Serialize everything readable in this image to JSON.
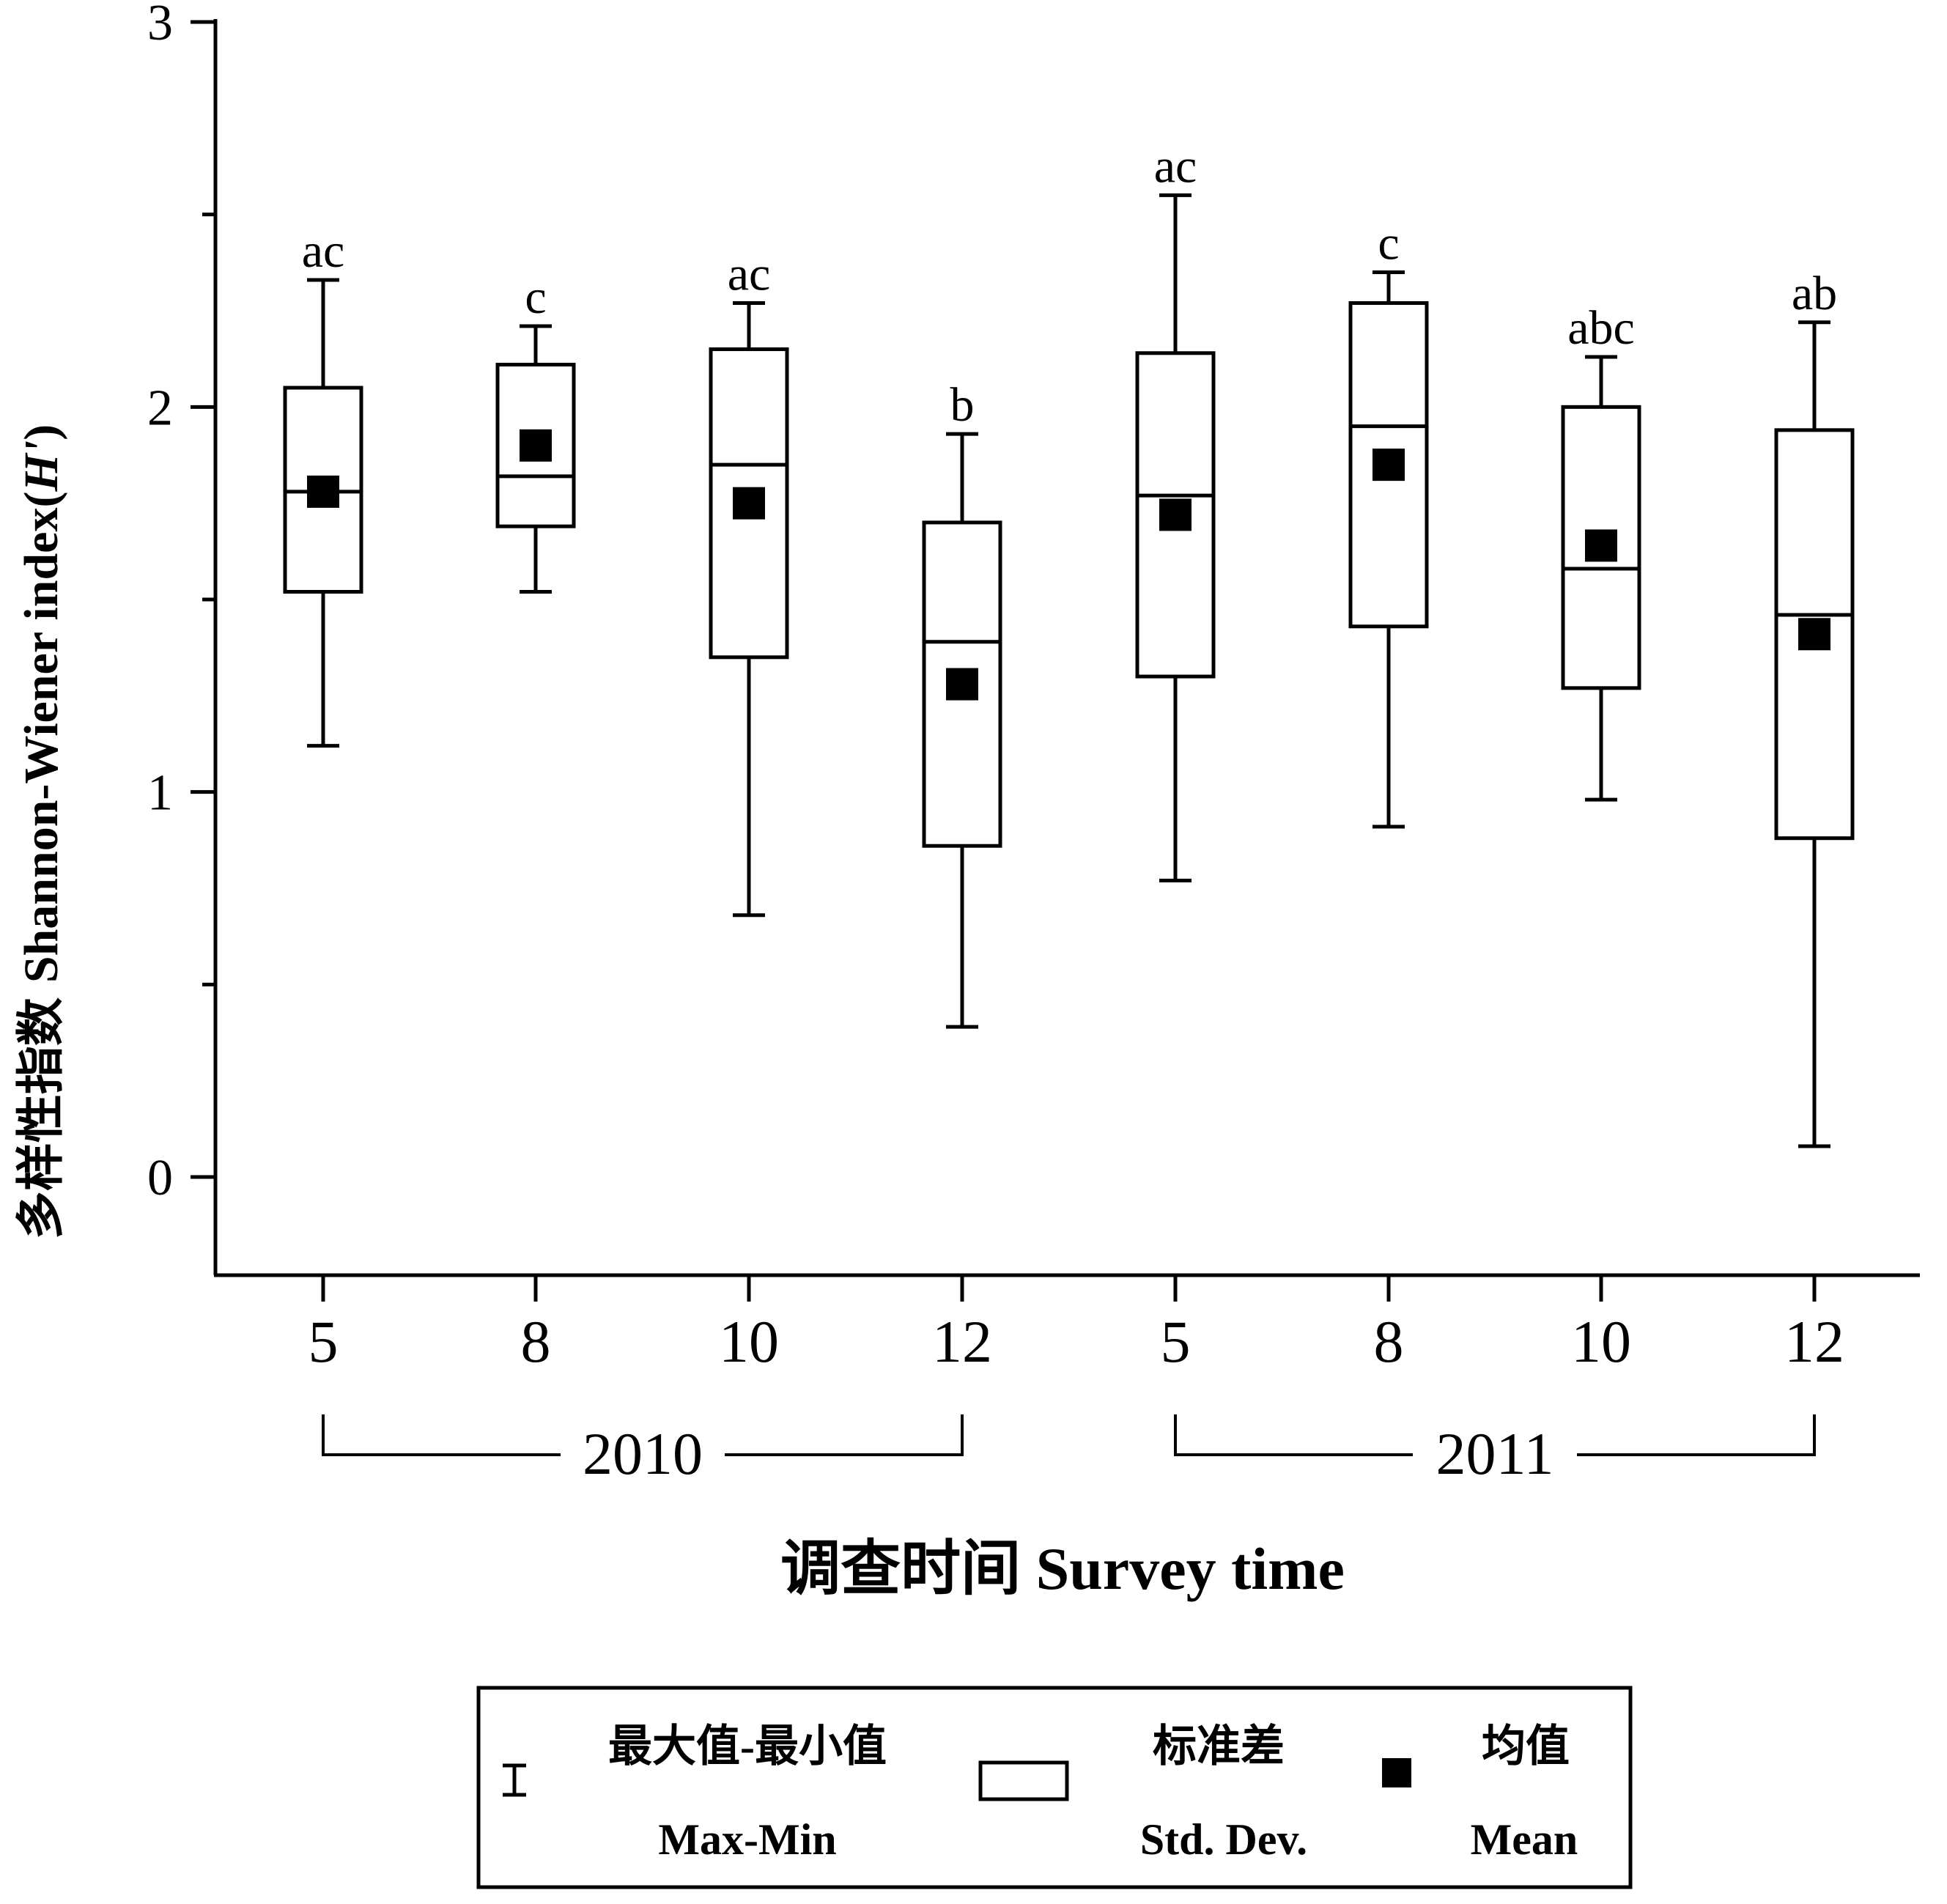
{
  "chart_data": {
    "type": "box",
    "ylabel_cn": "多样性指数",
    "ylabel_en": "Shannon-Wiener index(",
    "ylabel_sym": "H'",
    "ylabel_close": ")",
    "xlabel": "调查时间 Survey time",
    "ylim": [
      -0.26,
      3
    ],
    "yticks": [
      0,
      1,
      2,
      3
    ],
    "ytick_labels": [
      "0",
      "1",
      "2",
      "3"
    ],
    "categories": [
      "5",
      "8",
      "10",
      "12",
      "5",
      "8",
      "10",
      "12"
    ],
    "groups": [
      {
        "label": "2010",
        "from": 0,
        "to": 3
      },
      {
        "label": "2011",
        "from": 4,
        "to": 7
      }
    ],
    "boxes": [
      {
        "max": 2.33,
        "q3": 2.05,
        "median": 1.78,
        "q1": 1.52,
        "min": 1.12,
        "mean": 1.78,
        "letter": "ac"
      },
      {
        "max": 2.21,
        "q3": 2.11,
        "median": 1.82,
        "q1": 1.69,
        "min": 1.52,
        "mean": 1.9,
        "letter": "c"
      },
      {
        "max": 2.27,
        "q3": 2.15,
        "median": 1.85,
        "q1": 1.35,
        "min": 0.68,
        "mean": 1.75,
        "letter": "ac"
      },
      {
        "max": 1.93,
        "q3": 1.7,
        "median": 1.39,
        "q1": 0.86,
        "min": 0.39,
        "mean": 1.28,
        "letter": "b"
      },
      {
        "max": 2.55,
        "q3": 2.14,
        "median": 1.77,
        "q1": 1.3,
        "min": 0.77,
        "mean": 1.72,
        "letter": "ac"
      },
      {
        "max": 2.35,
        "q3": 2.27,
        "median": 1.95,
        "q1": 1.43,
        "min": 0.91,
        "mean": 1.85,
        "letter": "c"
      },
      {
        "max": 2.13,
        "q3": 2.0,
        "median": 1.58,
        "q1": 1.27,
        "min": 0.98,
        "mean": 1.64,
        "letter": "abc"
      },
      {
        "max": 2.22,
        "q3": 1.94,
        "median": 1.46,
        "q1": 0.88,
        "min": 0.08,
        "mean": 1.41,
        "letter": "ab"
      }
    ],
    "legend": {
      "items": [
        {
          "cn": "最大值-最小值",
          "en": "Max-Min"
        },
        {
          "cn": "标准差",
          "en": "Std. Dev."
        },
        {
          "cn": "均值",
          "en": "Mean"
        }
      ]
    },
    "colors": {
      "ink": "#000000",
      "background": "#ffffff"
    }
  }
}
